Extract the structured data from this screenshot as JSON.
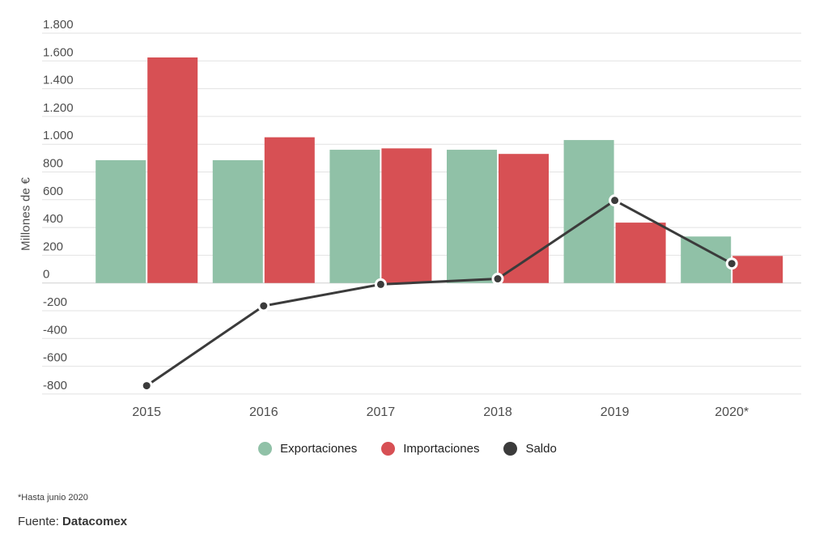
{
  "chart_data": {
    "type": "bar",
    "subtype": "grouped bars with line overlay",
    "categories": [
      "2015",
      "2016",
      "2017",
      "2018",
      "2019",
      "2020*"
    ],
    "series": [
      {
        "name": "Exportaciones",
        "type": "bar",
        "color": "#90c1a7",
        "values": [
          885,
          885,
          960,
          960,
          1030,
          335
        ]
      },
      {
        "name": "Importaciones",
        "type": "bar",
        "color": "#d75054",
        "values": [
          1625,
          1050,
          970,
          930,
          435,
          195
        ]
      },
      {
        "name": "Saldo",
        "type": "line",
        "color": "#3b3b3b",
        "values": [
          -740,
          -165,
          -10,
          30,
          595,
          140
        ]
      }
    ],
    "title": "",
    "xlabel": "",
    "ylabel": "Millones de €",
    "ylim": [
      -800,
      1800
    ],
    "y_tick_step": 200,
    "y_ticks": [
      "1.800",
      "1.600",
      "1.400",
      "1.200",
      "1.000",
      "800",
      "600",
      "400",
      "200",
      "0",
      "-200",
      "-400",
      "-600",
      "-800"
    ],
    "grid": "horizontal",
    "legend_position": "bottom"
  },
  "legend": {
    "items": [
      "Exportaciones",
      "Importaciones",
      "Saldo"
    ]
  },
  "footnote": "*Hasta junio 2020",
  "source": {
    "label": "Fuente: ",
    "value": "Datacomex"
  },
  "colors": {
    "exportaciones": "#90c1a7",
    "importaciones": "#d75054",
    "saldo": "#3b3b3b",
    "gridline": "#e2e2e2",
    "axis_text": "#4d4d4d",
    "background": "#ffffff"
  }
}
